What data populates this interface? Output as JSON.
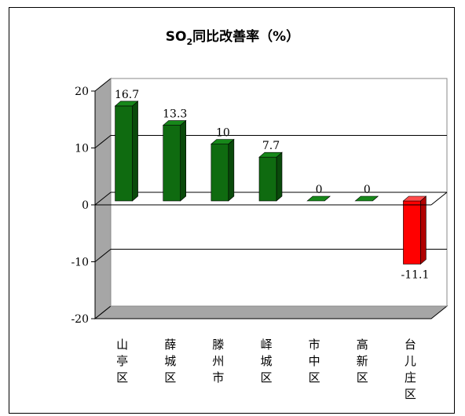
{
  "chart_data": {
    "type": "bar",
    "title_prefix": "SO",
    "title_sub": "2",
    "title_suffix": "同比改善率（%）",
    "categories": [
      "山亭区",
      "薛城区",
      "滕州市",
      "峄城区",
      "市中区",
      "高新区",
      "台儿庄区"
    ],
    "values": [
      16.7,
      13.3,
      10,
      7.7,
      0,
      0,
      -11.1
    ],
    "value_labels": [
      "16.7",
      "13.3",
      "10",
      "7.7",
      "0",
      "0",
      "-11.1"
    ],
    "ylim": [
      -20,
      20
    ],
    "yticks": [
      "20",
      "10",
      "0",
      "-10",
      "-20"
    ],
    "gridlines": true,
    "legend": "none",
    "colors": {
      "positive": "#0f6b10",
      "negative": "#ff0000",
      "wall": "#a6a6a6"
    }
  }
}
